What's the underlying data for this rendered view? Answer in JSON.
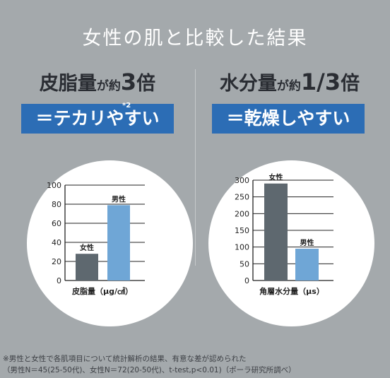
{
  "title": "女性の肌と比較した結果",
  "left": {
    "heading_pre": "皮脂量",
    "heading_mid": "が約",
    "heading_num": "3",
    "heading_post": "倍",
    "banner": "＝テカリやすい",
    "banner_note": "*2"
  },
  "right": {
    "heading_pre": "水分量",
    "heading_mid": "が約",
    "heading_num": "1/3",
    "heading_post": "倍",
    "banner": "＝乾燥しやすい"
  },
  "colors": {
    "female_bar": "#5e686f",
    "male_bar": "#6fa6d6",
    "banner": "#2c6db5",
    "background": "#a4a9ac"
  },
  "chart_data": [
    {
      "type": "bar",
      "categories": [
        "女性",
        "男性"
      ],
      "values": [
        28,
        79
      ],
      "xlabel": "皮脂量（μg/㎠）",
      "ylabel": "",
      "ylim": [
        0,
        100
      ],
      "yticks": [
        0,
        20,
        40,
        60,
        80,
        100
      ],
      "grid": true
    },
    {
      "type": "bar",
      "categories": [
        "女性",
        "男性"
      ],
      "values": [
        290,
        95
      ],
      "xlabel": "角層水分量（μs）",
      "ylabel": "",
      "ylim": [
        0,
        300
      ],
      "yticks": [
        0,
        50,
        100,
        150,
        200,
        250,
        300
      ],
      "grid": true
    }
  ],
  "footnote": {
    "line1": "※男性と女性で各肌項目について統計解析の結果、有意な差が認められた",
    "line2": "（男性N＝45(25-50代)、女性N＝72(20-50代)、t-test,p<0.01)（ポーラ研究所調べ）"
  }
}
